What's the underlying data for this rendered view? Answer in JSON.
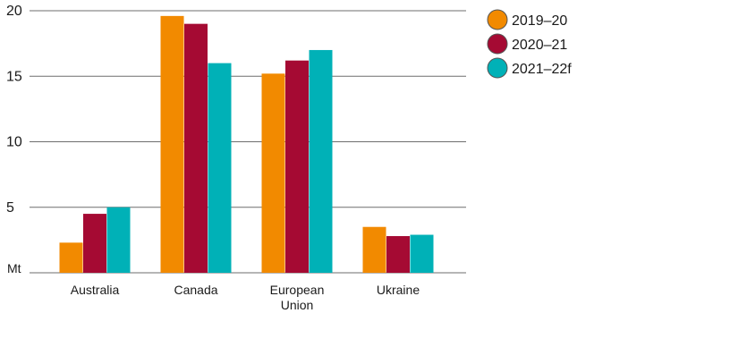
{
  "chart_data": {
    "type": "bar",
    "title": "",
    "xlabel": "",
    "ylabel": "Mt",
    "ylim": [
      0,
      20
    ],
    "yticks": [
      5,
      10,
      15,
      20
    ],
    "grid": true,
    "legend_position": "top-right",
    "categories": [
      [
        "Australia"
      ],
      [
        "Canada"
      ],
      [
        "European",
        "Union"
      ],
      [
        "Ukraine"
      ]
    ],
    "series": [
      {
        "name": "2019–20",
        "color": "#f28a00",
        "values": [
          2.3,
          19.6,
          15.2,
          3.5
        ]
      },
      {
        "name": "2020–21",
        "color": "#a50a33",
        "values": [
          4.5,
          19.0,
          16.2,
          2.8
        ]
      },
      {
        "name": "2021–22f",
        "color": "#00b1b7",
        "values": [
          5.0,
          16.0,
          17.0,
          2.9
        ]
      }
    ],
    "colors": {
      "grid": "#6e6e6e",
      "axis": "#6e6e6e"
    }
  }
}
